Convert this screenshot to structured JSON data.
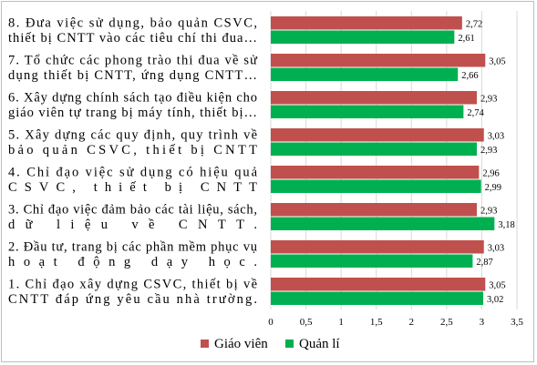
{
  "chart_data": {
    "type": "bar",
    "orientation": "horizontal",
    "categories": [
      [
        "8. Đưa việc sử dụng, bảo quản CSVC,",
        "thiết bị CNTT vào các tiêu chí thi đua…"
      ],
      [
        "7. Tổ chức các phong trào thi đua về sử",
        "dụng thiết bị CNTT, ứng dụng CNTT…"
      ],
      [
        "6. Xây dựng chính sách tạo điều kiện cho",
        "giáo viên tự trang bị máy tính, thiết bị…"
      ],
      [
        "5. Xây dựng các quy định, quy trình về",
        "bảo quản CSVC, thiết bị CNTT"
      ],
      [
        "4. Chỉ đạo việc sử dụng có hiệu quả",
        "CSVC, thiết bị CNTT"
      ],
      [
        "3. Chỉ đạo việc đảm bảo các tài liệu, sách,",
        "dữ liệu về CNTT."
      ],
      [
        "2. Đầu tư, trang bị các phần mềm phục vụ",
        "hoạt động dạy học."
      ],
      [
        "1. Chỉ đạo xây dựng CSVC, thiết bị về",
        "CNTT đáp ứng yêu cầu nhà trường."
      ]
    ],
    "series": [
      {
        "name": "Giáo viên",
        "color": "#c0504d",
        "values": [
          2.72,
          3.05,
          2.93,
          3.03,
          2.96,
          2.93,
          3.03,
          3.05
        ],
        "labels": [
          "2,72",
          "3,05",
          "2,93",
          "3,03",
          "2,96",
          "2,93",
          "3,03",
          "3,05"
        ]
      },
      {
        "name": "Quản lí",
        "color": "#00b050",
        "values": [
          2.61,
          2.66,
          2.74,
          2.93,
          2.99,
          3.18,
          2.87,
          3.02
        ],
        "labels": [
          "2,61",
          "2,66",
          "2,74",
          "2,93",
          "2,99",
          "3,18",
          "2,87",
          "3,02"
        ]
      }
    ],
    "xlim": [
      0,
      3.5
    ],
    "ticks": [
      0,
      0.5,
      1,
      1.5,
      2,
      2.5,
      3,
      3.5
    ],
    "tick_labels": [
      "0",
      "0,5",
      "1",
      "1,5",
      "2",
      "2,5",
      "3",
      "3,5"
    ],
    "grid": "vertical",
    "legend": "bottom",
    "title": "",
    "xlabel": "",
    "ylabel": ""
  }
}
